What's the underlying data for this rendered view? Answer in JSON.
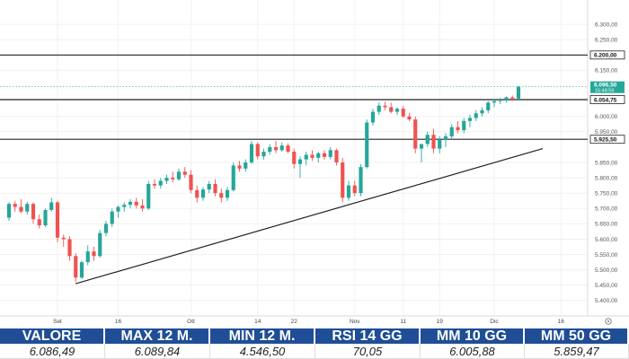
{
  "chart_data": {
    "type": "candlestick",
    "y_range": [
      5350,
      6350
    ],
    "y_ticks": [
      {
        "value": 6300,
        "label": "6.300,00"
      },
      {
        "value": 6250,
        "label": "6.250,00"
      },
      {
        "value": 6150,
        "label": "6.150,00"
      },
      {
        "value": 6000,
        "label": "6.000,00"
      },
      {
        "value": 5950,
        "label": "5.950,00"
      },
      {
        "value": 5850,
        "label": "5.850,00"
      },
      {
        "value": 5800,
        "label": "5.800,00"
      },
      {
        "value": 5750,
        "label": "5.750,00"
      },
      {
        "value": 5700,
        "label": "5.700,00"
      },
      {
        "value": 5650,
        "label": "5.650,00"
      },
      {
        "value": 5600,
        "label": "5.600,00"
      },
      {
        "value": 5550,
        "label": "5.550,00"
      },
      {
        "value": 5500,
        "label": "5.500,00"
      },
      {
        "value": 5450,
        "label": "5.450,00"
      },
      {
        "value": 5400,
        "label": "5.400,00"
      }
    ],
    "x_ticks": [
      {
        "index": 8,
        "label": "Set"
      },
      {
        "index": 18,
        "label": "16"
      },
      {
        "index": 30,
        "label": "Ott"
      },
      {
        "index": 41,
        "label": "14"
      },
      {
        "index": 47,
        "label": "22"
      },
      {
        "index": 57,
        "label": "Nov"
      },
      {
        "index": 65,
        "label": "11"
      },
      {
        "index": 71,
        "label": "19"
      },
      {
        "index": 80,
        "label": "Dic"
      },
      {
        "index": 91,
        "label": "16"
      }
    ],
    "x_range": [
      0,
      96
    ],
    "horizontal_levels": [
      {
        "value": 6200,
        "label": "6.200,00",
        "style": "outline"
      },
      {
        "value": 6054.75,
        "label": "6.054,75",
        "style": "outline"
      },
      {
        "value": 5925.5,
        "label": "5.925,50",
        "style": "outline"
      }
    ],
    "last_price": {
      "value": 6096.5,
      "label": "6.096,50",
      "sublabel": "15:48:59",
      "color": "#26a69a"
    },
    "trendline": {
      "from": {
        "index": 11,
        "value": 5455
      },
      "to": {
        "index": 88,
        "value": 5895
      }
    },
    "candles": [
      {
        "o": 5670,
        "h": 5720,
        "l": 5660,
        "c": 5715
      },
      {
        "o": 5715,
        "h": 5725,
        "l": 5690,
        "c": 5705
      },
      {
        "o": 5705,
        "h": 5730,
        "l": 5685,
        "c": 5690
      },
      {
        "o": 5690,
        "h": 5722,
        "l": 5680,
        "c": 5715
      },
      {
        "o": 5715,
        "h": 5720,
        "l": 5650,
        "c": 5665
      },
      {
        "o": 5665,
        "h": 5680,
        "l": 5635,
        "c": 5645
      },
      {
        "o": 5645,
        "h": 5700,
        "l": 5640,
        "c": 5695
      },
      {
        "o": 5695,
        "h": 5735,
        "l": 5690,
        "c": 5720
      },
      {
        "o": 5720,
        "h": 5725,
        "l": 5590,
        "c": 5605
      },
      {
        "o": 5605,
        "h": 5615,
        "l": 5575,
        "c": 5600
      },
      {
        "o": 5600,
        "h": 5610,
        "l": 5530,
        "c": 5545
      },
      {
        "o": 5545,
        "h": 5555,
        "l": 5460,
        "c": 5475
      },
      {
        "o": 5475,
        "h": 5530,
        "l": 5470,
        "c": 5525
      },
      {
        "o": 5525,
        "h": 5580,
        "l": 5515,
        "c": 5560
      },
      {
        "o": 5560,
        "h": 5575,
        "l": 5530,
        "c": 5545
      },
      {
        "o": 5545,
        "h": 5630,
        "l": 5540,
        "c": 5620
      },
      {
        "o": 5620,
        "h": 5660,
        "l": 5610,
        "c": 5650
      },
      {
        "o": 5650,
        "h": 5700,
        "l": 5640,
        "c": 5690
      },
      {
        "o": 5690,
        "h": 5710,
        "l": 5670,
        "c": 5705
      },
      {
        "o": 5705,
        "h": 5720,
        "l": 5690,
        "c": 5712
      },
      {
        "o": 5712,
        "h": 5730,
        "l": 5700,
        "c": 5722
      },
      {
        "o": 5722,
        "h": 5735,
        "l": 5700,
        "c": 5710
      },
      {
        "o": 5710,
        "h": 5730,
        "l": 5690,
        "c": 5700
      },
      {
        "o": 5700,
        "h": 5790,
        "l": 5695,
        "c": 5780
      },
      {
        "o": 5780,
        "h": 5795,
        "l": 5765,
        "c": 5775
      },
      {
        "o": 5775,
        "h": 5800,
        "l": 5765,
        "c": 5790
      },
      {
        "o": 5790,
        "h": 5810,
        "l": 5780,
        "c": 5800
      },
      {
        "o": 5800,
        "h": 5820,
        "l": 5785,
        "c": 5795
      },
      {
        "o": 5795,
        "h": 5830,
        "l": 5790,
        "c": 5820
      },
      {
        "o": 5820,
        "h": 5835,
        "l": 5800,
        "c": 5810
      },
      {
        "o": 5810,
        "h": 5825,
        "l": 5750,
        "c": 5760
      },
      {
        "o": 5760,
        "h": 5775,
        "l": 5720,
        "c": 5735
      },
      {
        "o": 5735,
        "h": 5770,
        "l": 5725,
        "c": 5762
      },
      {
        "o": 5762,
        "h": 5790,
        "l": 5750,
        "c": 5780
      },
      {
        "o": 5780,
        "h": 5795,
        "l": 5740,
        "c": 5750
      },
      {
        "o": 5750,
        "h": 5765,
        "l": 5720,
        "c": 5735
      },
      {
        "o": 5735,
        "h": 5770,
        "l": 5725,
        "c": 5760
      },
      {
        "o": 5760,
        "h": 5850,
        "l": 5755,
        "c": 5840
      },
      {
        "o": 5840,
        "h": 5855,
        "l": 5820,
        "c": 5830
      },
      {
        "o": 5830,
        "h": 5860,
        "l": 5820,
        "c": 5850
      },
      {
        "o": 5850,
        "h": 5920,
        "l": 5845,
        "c": 5910
      },
      {
        "o": 5910,
        "h": 5915,
        "l": 5860,
        "c": 5870
      },
      {
        "o": 5870,
        "h": 5895,
        "l": 5860,
        "c": 5885
      },
      {
        "o": 5885,
        "h": 5910,
        "l": 5875,
        "c": 5900
      },
      {
        "o": 5900,
        "h": 5920,
        "l": 5880,
        "c": 5890
      },
      {
        "o": 5890,
        "h": 5915,
        "l": 5885,
        "c": 5905
      },
      {
        "o": 5905,
        "h": 5912,
        "l": 5880,
        "c": 5885
      },
      {
        "o": 5885,
        "h": 5895,
        "l": 5830,
        "c": 5845
      },
      {
        "o": 5845,
        "h": 5870,
        "l": 5800,
        "c": 5860
      },
      {
        "o": 5860,
        "h": 5885,
        "l": 5840,
        "c": 5875
      },
      {
        "o": 5875,
        "h": 5890,
        "l": 5855,
        "c": 5865
      },
      {
        "o": 5865,
        "h": 5885,
        "l": 5850,
        "c": 5880
      },
      {
        "o": 5880,
        "h": 5890,
        "l": 5860,
        "c": 5868
      },
      {
        "o": 5868,
        "h": 5900,
        "l": 5860,
        "c": 5890
      },
      {
        "o": 5890,
        "h": 5895,
        "l": 5840,
        "c": 5850
      },
      {
        "o": 5850,
        "h": 5865,
        "l": 5720,
        "c": 5735
      },
      {
        "o": 5735,
        "h": 5790,
        "l": 5725,
        "c": 5775
      },
      {
        "o": 5775,
        "h": 5790,
        "l": 5740,
        "c": 5750
      },
      {
        "o": 5750,
        "h": 5845,
        "l": 5740,
        "c": 5835
      },
      {
        "o": 5835,
        "h": 5990,
        "l": 5830,
        "c": 5980
      },
      {
        "o": 5980,
        "h": 6025,
        "l": 5970,
        "c": 6015
      },
      {
        "o": 6015,
        "h": 6045,
        "l": 6005,
        "c": 6035
      },
      {
        "o": 6035,
        "h": 6048,
        "l": 6020,
        "c": 6030
      },
      {
        "o": 6030,
        "h": 6045,
        "l": 6010,
        "c": 6015
      },
      {
        "o": 6015,
        "h": 6030,
        "l": 6005,
        "c": 6025
      },
      {
        "o": 6025,
        "h": 6035,
        "l": 5995,
        "c": 6000
      },
      {
        "o": 6000,
        "h": 6012,
        "l": 5985,
        "c": 5990
      },
      {
        "o": 5990,
        "h": 6000,
        "l": 5880,
        "c": 5895
      },
      {
        "o": 5895,
        "h": 5905,
        "l": 5850,
        "c": 5910
      },
      {
        "o": 5910,
        "h": 5950,
        "l": 5900,
        "c": 5940
      },
      {
        "o": 5940,
        "h": 5960,
        "l": 5880,
        "c": 5895
      },
      {
        "o": 5895,
        "h": 5935,
        "l": 5880,
        "c": 5925
      },
      {
        "o": 5925,
        "h": 5945,
        "l": 5900,
        "c": 5935
      },
      {
        "o": 5935,
        "h": 5975,
        "l": 5925,
        "c": 5965
      },
      {
        "o": 5965,
        "h": 5985,
        "l": 5945,
        "c": 5955
      },
      {
        "o": 5955,
        "h": 5995,
        "l": 5945,
        "c": 5985
      },
      {
        "o": 5985,
        "h": 6005,
        "l": 5965,
        "c": 5995
      },
      {
        "o": 5995,
        "h": 6020,
        "l": 5985,
        "c": 6010
      },
      {
        "o": 6010,
        "h": 6030,
        "l": 6000,
        "c": 6020
      },
      {
        "o": 6020,
        "h": 6050,
        "l": 6010,
        "c": 6045
      },
      {
        "o": 6045,
        "h": 6055,
        "l": 6030,
        "c": 6050
      },
      {
        "o": 6050,
        "h": 6060,
        "l": 6040,
        "c": 6055
      },
      {
        "o": 6055,
        "h": 6065,
        "l": 6045,
        "c": 6062
      },
      {
        "o": 6062,
        "h": 6068,
        "l": 6050,
        "c": 6058
      },
      {
        "o": 6058,
        "h": 6100,
        "l": 6055,
        "c": 6096.5
      }
    ]
  },
  "stats": [
    {
      "label": "VALORE",
      "value": "6.086,49"
    },
    {
      "label": "MAX 12 M.",
      "value": "6.089,84"
    },
    {
      "label": "MIN 12 M.",
      "value": "4.546,50"
    },
    {
      "label": "RSI 14 GG",
      "value": "70,05"
    },
    {
      "label": "MM 10 GG",
      "value": "6.005,88"
    },
    {
      "label": "MM 50 GG",
      "value": "5.859,47"
    }
  ],
  "colors": {
    "up": "#26a69a",
    "down": "#ef5350",
    "header_bg": "#1f4e96",
    "level_line": "#222222"
  }
}
